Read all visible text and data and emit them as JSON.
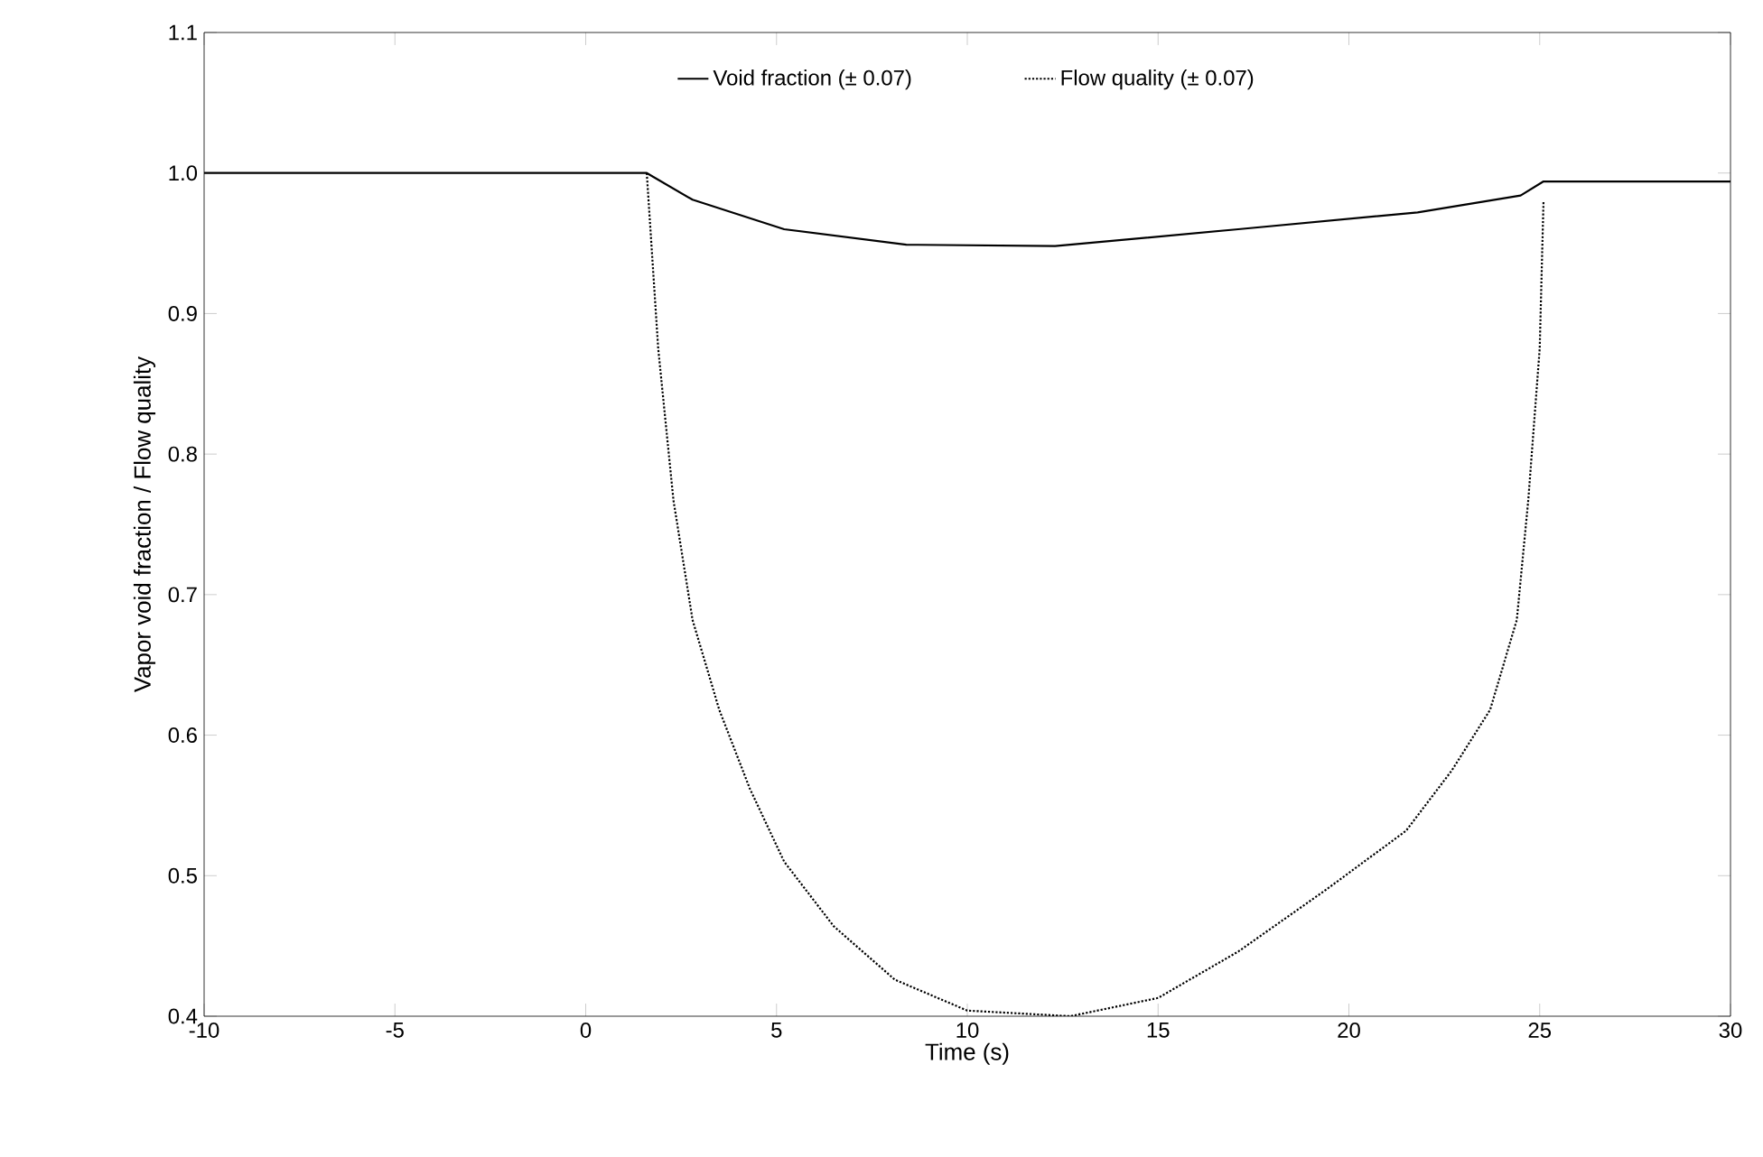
{
  "chart_data": {
    "type": "line",
    "xlabel": "Time (s)",
    "ylabel": "Vapor void fraction / Flow quality",
    "xlim": [
      -10,
      30
    ],
    "ylim": [
      0.4,
      1.1
    ],
    "xticks": [
      -10,
      -5,
      0,
      5,
      10,
      15,
      20,
      25,
      30
    ],
    "yticks": [
      0.4,
      0.5,
      0.6,
      0.7,
      0.8,
      0.9,
      {
        "value": 1,
        "label": "1.0"
      },
      1.1
    ],
    "legend": "top",
    "series": [
      {
        "name": "Void fraction (± 0.07)",
        "color": "#000000",
        "line_style": "solid",
        "x": [
          -10,
          1.6,
          2.8,
          5.2,
          8.4,
          12.3,
          17.1,
          21.8,
          24.5,
          25.1,
          30
        ],
        "values": [
          1.0,
          1.0,
          0.981,
          0.96,
          0.949,
          0.948,
          0.96,
          0.972,
          0.984,
          0.994,
          0.994
        ]
      },
      {
        "name": "Flow quality (± 0.07)",
        "color": "#000000",
        "line_style": "dotted",
        "x": [
          1.6,
          1.9,
          2.3,
          2.8,
          3.5,
          4.3,
          5.2,
          6.5,
          8.1,
          10.0,
          12.7,
          15.0,
          17.1,
          19.4,
          21.5,
          22.7,
          23.7,
          24.4,
          24.7,
          25.0,
          25.1
        ],
        "values": [
          1.0,
          0.875,
          0.767,
          0.682,
          0.618,
          0.562,
          0.51,
          0.464,
          0.426,
          0.404,
          0.4,
          0.413,
          0.446,
          0.49,
          0.532,
          0.575,
          0.618,
          0.682,
          0.767,
          0.875,
          0.98
        ]
      }
    ]
  }
}
